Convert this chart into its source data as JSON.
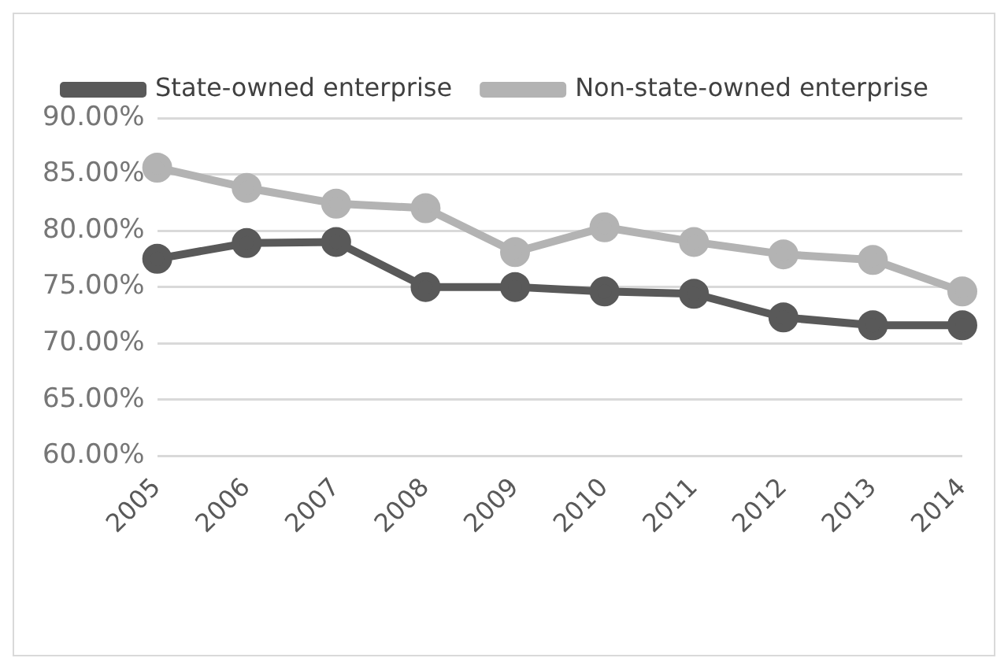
{
  "chart_data": {
    "type": "line",
    "categories": [
      "2005",
      "2006",
      "2007",
      "2008",
      "2009",
      "2010",
      "2011",
      "2012",
      "2013",
      "2014"
    ],
    "series": [
      {
        "name": "State-owned enterprise",
        "color": "#595959",
        "values": [
          77.5,
          78.9,
          79.0,
          75.0,
          75.0,
          74.6,
          74.4,
          72.3,
          71.6,
          71.6
        ]
      },
      {
        "name": "Non-state-owned enterprise",
        "color": "#b3b3b3",
        "values": [
          85.6,
          83.8,
          82.4,
          82.0,
          78.1,
          80.3,
          79.0,
          77.9,
          77.4,
          74.6
        ]
      }
    ],
    "ylim": [
      60,
      90
    ],
    "yticks": [
      {
        "value": 60,
        "label": "60.00%"
      },
      {
        "value": 65,
        "label": "65.00%"
      },
      {
        "value": 70,
        "label": "70.00%"
      },
      {
        "value": 75,
        "label": "75.00%"
      },
      {
        "value": 80,
        "label": "80.00%"
      },
      {
        "value": 85,
        "label": "85.00%"
      },
      {
        "value": 90,
        "label": "90.00%"
      }
    ],
    "grid": "y",
    "legend": "top",
    "marker": "circle",
    "line_style": "solid"
  }
}
